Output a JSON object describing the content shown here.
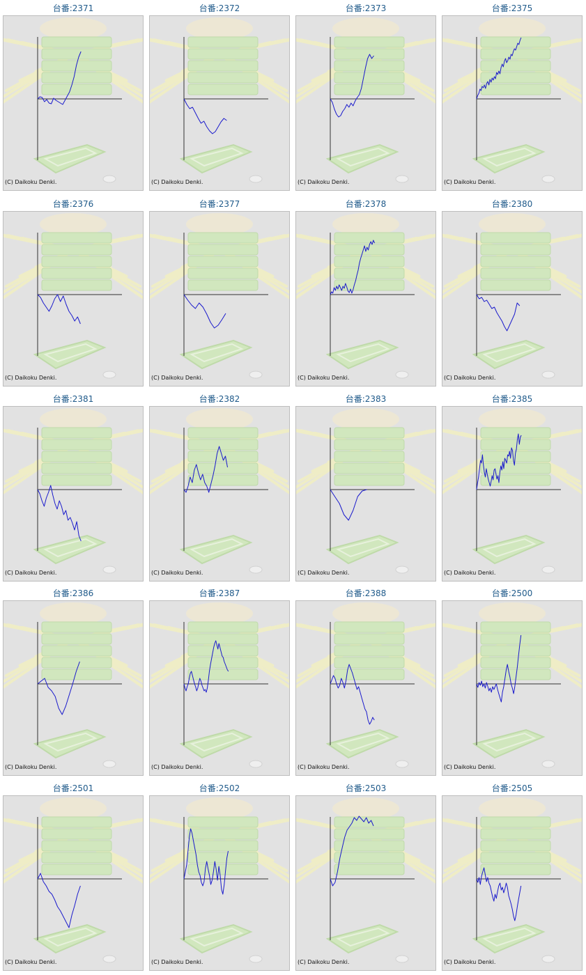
{
  "copyright": "(C) Daikoku Denki.",
  "colors": {
    "line": "#1a1acc",
    "axis": "#333333",
    "background": "#e2e2e2",
    "title": "#1f5a8a",
    "art_green": "#cfe8b8",
    "art_rays": "#f2f0c2"
  },
  "chart_data": [
    {
      "type": "line",
      "title": "台番:2371",
      "y": [
        0,
        3,
        2,
        -4,
        -1,
        -6,
        -7,
        1,
        -2,
        -4,
        -6,
        -8,
        -2,
        4,
        10,
        20,
        32,
        48,
        60,
        68
      ]
    },
    {
      "type": "line",
      "title": "台番:2372",
      "y": [
        0,
        -8,
        -14,
        -12,
        -20,
        -28,
        -35,
        -32,
        -40,
        -46,
        -50,
        -47,
        -40,
        -33,
        -28,
        -31
      ]
    },
    {
      "type": "line",
      "title": "台番:2373",
      "y": [
        0,
        -5,
        -15,
        -22,
        -26,
        -24,
        -18,
        -14,
        -8,
        -12,
        -6,
        -10,
        -3,
        2,
        6,
        15,
        30,
        45,
        58,
        64,
        58,
        62
      ]
    },
    {
      "type": "line",
      "title": "台番:2375",
      "y": [
        0,
        5,
        8,
        14,
        12,
        18,
        16,
        20,
        15,
        22,
        25,
        20,
        28,
        24,
        30,
        27,
        32,
        29,
        38,
        35,
        40,
        36,
        45,
        50,
        46,
        54,
        58,
        52,
        55,
        60,
        57,
        64,
        62,
        68,
        72,
        70,
        75,
        80,
        78,
        84,
        88
      ]
    },
    {
      "type": "line",
      "title": "台番:2376",
      "y": [
        0,
        -4,
        -12,
        -18,
        -24,
        -16,
        -6,
        0,
        -10,
        -2,
        -14,
        -24,
        -30,
        -38,
        -32,
        -42
      ]
    },
    {
      "type": "line",
      "title": "台番:2377",
      "y": [
        0,
        -8,
        -15,
        -20,
        -12,
        -18,
        -28,
        -40,
        -48,
        -44,
        -36,
        -27
      ]
    },
    {
      "type": "line",
      "title": "台番:2378",
      "y": [
        0,
        4,
        2,
        10,
        6,
        12,
        8,
        14,
        10,
        6,
        12,
        9,
        16,
        11,
        5,
        3,
        8,
        2,
        7,
        14,
        20,
        28,
        35,
        45,
        52,
        58,
        64,
        70,
        62,
        68,
        64,
        72,
        76,
        72,
        78,
        74
      ]
    },
    {
      "type": "line",
      "title": "台番:2380",
      "y": [
        0,
        -6,
        -4,
        -10,
        -8,
        -14,
        -20,
        -18,
        -26,
        -32,
        -38,
        -46,
        -52,
        -44,
        -36,
        -28,
        -12,
        -16
      ]
    },
    {
      "type": "line",
      "title": "台番:2381",
      "y": [
        0,
        -6,
        -16,
        -24,
        -12,
        -4,
        6,
        -8,
        -20,
        -28,
        -16,
        -24,
        -36,
        -30,
        -44,
        -40,
        -48,
        -58,
        -46,
        -66,
        -74
      ]
    },
    {
      "type": "line",
      "title": "台番:2382",
      "y": [
        0,
        -4,
        5,
        18,
        10,
        28,
        36,
        24,
        14,
        22,
        10,
        5,
        -4,
        8,
        20,
        34,
        52,
        62,
        52,
        42,
        48,
        32
      ]
    },
    {
      "type": "line",
      "title": "台番:2383",
      "y": [
        0,
        -10,
        -20,
        -36,
        -44,
        -30,
        -10,
        -2,
        0
      ]
    },
    {
      "type": "line",
      "title": "台番:2385",
      "y": [
        0,
        10,
        18,
        30,
        42,
        38,
        50,
        36,
        25,
        18,
        30,
        22,
        15,
        10,
        5,
        12,
        20,
        14,
        28,
        30,
        22,
        15,
        20,
        10,
        25,
        34,
        28,
        40,
        30,
        45,
        42,
        38,
        50,
        48,
        55,
        45,
        60,
        56,
        42,
        35,
        52,
        58,
        72,
        80,
        65,
        75,
        78
      ]
    },
    {
      "type": "line",
      "title": "台番:2386",
      "y": [
        0,
        4,
        8,
        -5,
        -10,
        -18,
        -35,
        -44,
        -32,
        -16,
        0,
        18,
        32
      ]
    },
    {
      "type": "line",
      "title": "台番:2387",
      "y": [
        0,
        -6,
        -10,
        -4,
        0,
        8,
        15,
        18,
        12,
        6,
        0,
        -4,
        -10,
        -6,
        2,
        8,
        4,
        -2,
        -6,
        -10,
        -8,
        -12,
        -6,
        5,
        18,
        28,
        36,
        44,
        52,
        58,
        62,
        56,
        50,
        58,
        52,
        46,
        40,
        38,
        32,
        28,
        24,
        20,
        18
      ]
    },
    {
      "type": "line",
      "title": "台番:2388",
      "y": [
        0,
        6,
        12,
        8,
        0,
        -6,
        -2,
        8,
        2,
        -6,
        5,
        20,
        28,
        22,
        16,
        8,
        0,
        -8,
        -4,
        -12,
        -20,
        -28,
        -36,
        -40,
        -52,
        -58,
        -54,
        -48,
        -52
      ]
    },
    {
      "type": "line",
      "title": "台番:2500",
      "y": [
        0,
        -5,
        2,
        -2,
        4,
        -4,
        0,
        -6,
        2,
        -3,
        -10,
        -6,
        -12,
        -4,
        -8,
        -4,
        0,
        -8,
        -14,
        -20,
        -26,
        -12,
        -4,
        8,
        20,
        28,
        18,
        10,
        0,
        -6,
        -14,
        -4,
        10,
        24,
        40,
        56,
        70
      ]
    },
    {
      "type": "line",
      "title": "台番:2501",
      "y": [
        0,
        8,
        -4,
        -10,
        -18,
        -22,
        -30,
        -40,
        -46,
        -54,
        -62,
        -70,
        -52,
        -38,
        -22,
        -10
      ]
    },
    {
      "type": "line",
      "title": "台番:2502",
      "y": [
        0,
        10,
        20,
        40,
        60,
        72,
        66,
        55,
        45,
        35,
        20,
        10,
        5,
        -5,
        -10,
        -4,
        15,
        25,
        14,
        5,
        -8,
        -2,
        10,
        25,
        14,
        -2,
        18,
        5,
        -15,
        -22,
        -8,
        12,
        30,
        40
      ]
    },
    {
      "type": "line",
      "title": "台番:2503",
      "y": [
        0,
        -10,
        -5,
        10,
        30,
        45,
        60,
        70,
        75,
        80,
        88,
        84,
        90,
        86,
        82,
        88,
        80,
        84,
        76
      ]
    },
    {
      "type": "line",
      "title": "台番:2505",
      "y": [
        0,
        -5,
        2,
        -8,
        4,
        10,
        16,
        6,
        -4,
        2,
        -6,
        -10,
        -18,
        -26,
        -32,
        -22,
        -28,
        -18,
        -10,
        -6,
        -16,
        -12,
        -20,
        -14,
        -6,
        -12,
        -24,
        -30,
        -36,
        -44,
        -54,
        -60,
        -52,
        -40,
        -30,
        -20,
        -10
      ]
    }
  ]
}
